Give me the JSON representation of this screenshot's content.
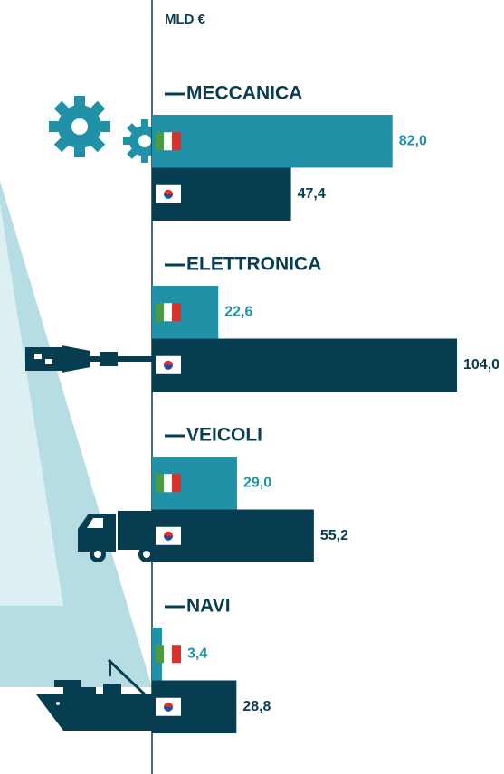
{
  "chart_data": {
    "type": "bar",
    "orientation": "horizontal",
    "title": "MLD €",
    "categories": [
      "MECCANICA",
      "ELETTRONICA",
      "VEICOLI",
      "NAVI"
    ],
    "series": [
      {
        "color": "#2191a7",
        "values": [
          82.0,
          22.6,
          29.0,
          3.4
        ],
        "value_labels": [
          "82,0",
          "22,6",
          "29,0",
          "3,4"
        ]
      },
      {
        "color": "#063d50",
        "values": [
          47.4,
          104.0,
          55.2,
          28.8
        ],
        "value_labels": [
          "47,4",
          "104,0",
          "55,2",
          "28,8"
        ]
      }
    ]
  }
}
